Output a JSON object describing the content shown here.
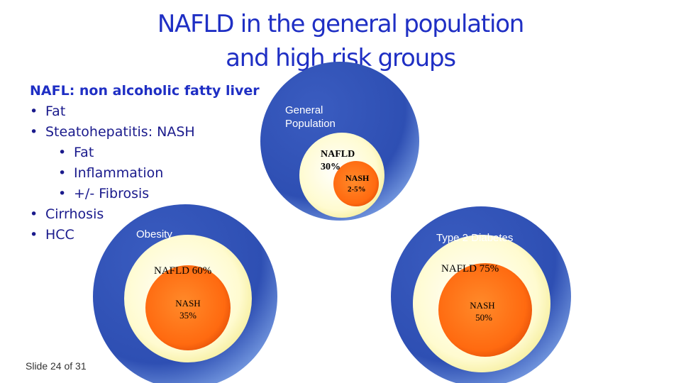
{
  "slide": {
    "title_line1": "NAFLD in the general population",
    "title_line2": "and high risk groups",
    "footer": "Slide 24 of 31"
  },
  "definitions": {
    "heading": "NAFL: non alcoholic fatty liver",
    "items": [
      {
        "level": 1,
        "text": "Fat"
      },
      {
        "level": 1,
        "text": "Steatohepatitis: NASH"
      },
      {
        "level": 2,
        "text": "Fat"
      },
      {
        "level": 2,
        "text": "Inflammation"
      },
      {
        "level": 2,
        "text": "+/- Fibrosis"
      },
      {
        "level": 1,
        "text": "Cirrhosis"
      },
      {
        "level": 1,
        "text": "HCC"
      }
    ]
  },
  "groups": {
    "general": {
      "label_line1": "General",
      "label_line2": "Population",
      "nafld_label": "NAFLD",
      "nafld_value": "30%",
      "nash_label": "NASH",
      "nash_value": "2-5%"
    },
    "obesity": {
      "label": "Obesity",
      "nafld_text": "NAFLD 60%",
      "nash_label": "NASH",
      "nash_value": "35%"
    },
    "diabetes": {
      "label": "Type 2 Diabetes",
      "nafld_text": "NAFLD 75%",
      "nash_label": "NASH",
      "nash_value": "50%"
    }
  },
  "colors": {
    "title": "#1f2fc4",
    "outer_circle": "#3e62c0",
    "nafld_fill": "#fffbd0",
    "nash_fill": "#ff7a1a"
  }
}
